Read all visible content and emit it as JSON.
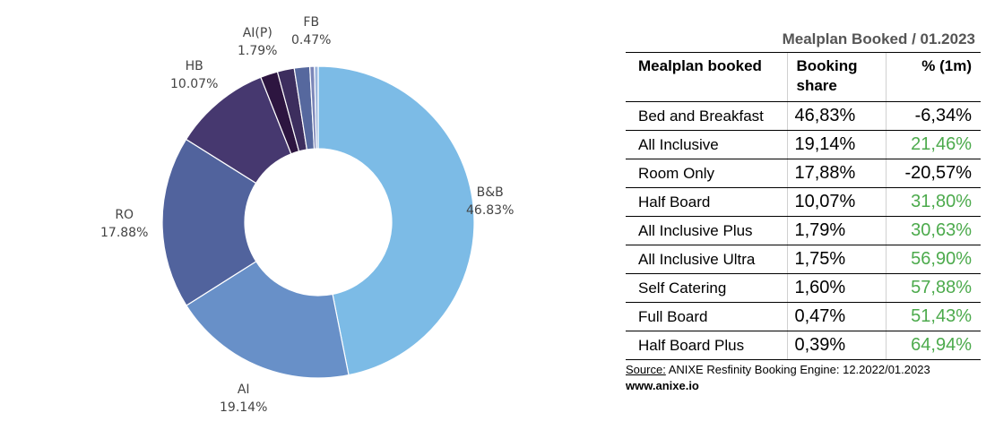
{
  "chart_data": {
    "type": "pie",
    "variant": "donut",
    "slices": [
      {
        "label": "B&B",
        "pct_label": "46.83%",
        "value": 46.83,
        "color": "#7cbbe6"
      },
      {
        "label": "AI",
        "pct_label": "19.14%",
        "value": 19.14,
        "color": "#6890c8"
      },
      {
        "label": "RO",
        "pct_label": "17.88%",
        "value": 17.88,
        "color": "#51639d"
      },
      {
        "label": "HB",
        "pct_label": "10.07%",
        "value": 10.07,
        "color": "#46386f"
      },
      {
        "label": "AI(P)",
        "pct_label": "1.79%",
        "value": 1.79,
        "color": "#2d1540"
      },
      {
        "label": "",
        "pct_label": "",
        "value": 1.75,
        "color": "#3d2e5e"
      },
      {
        "label": "",
        "pct_label": "",
        "value": 1.6,
        "color": "#56689e"
      },
      {
        "label": "FB",
        "pct_label": "0.47%",
        "value": 0.47,
        "color": "#7b86b8"
      },
      {
        "label": "",
        "pct_label": "",
        "value": 0.39,
        "color": "#9ab4dc"
      }
    ]
  },
  "table": {
    "title": "Mealplan Booked / 01.2023",
    "headers": [
      "Mealplan booked",
      "Booking share",
      "% (1m)"
    ],
    "rows": [
      {
        "name": "Bed and Breakfast",
        "share": "46,83%",
        "change": "-6,34%",
        "positive": false
      },
      {
        "name": "All Inclusive",
        "share": "19,14%",
        "change": "21,46%",
        "positive": true
      },
      {
        "name": "Room Only",
        "share": "17,88%",
        "change": "-20,57%",
        "positive": false
      },
      {
        "name": "Half Board",
        "share": "10,07%",
        "change": "31,80%",
        "positive": true
      },
      {
        "name": "All Inclusive Plus",
        "share": "1,79%",
        "change": "30,63%",
        "positive": true
      },
      {
        "name": "All Inclusive Ultra",
        "share": "1,75%",
        "change": "56,90%",
        "positive": true
      },
      {
        "name": "Self Catering",
        "share": "1,60%",
        "change": "57,88%",
        "positive": true
      },
      {
        "name": "Full Board",
        "share": "0,47%",
        "change": "51,43%",
        "positive": true
      },
      {
        "name": "Half Board Plus",
        "share": "0,39%",
        "change": "64,94%",
        "positive": true
      }
    ]
  },
  "source": {
    "label": "Source:",
    "text": " ANIXE Resfinity Booking Engine: 12.2022/01.2023",
    "website": "www.anixe.io"
  }
}
